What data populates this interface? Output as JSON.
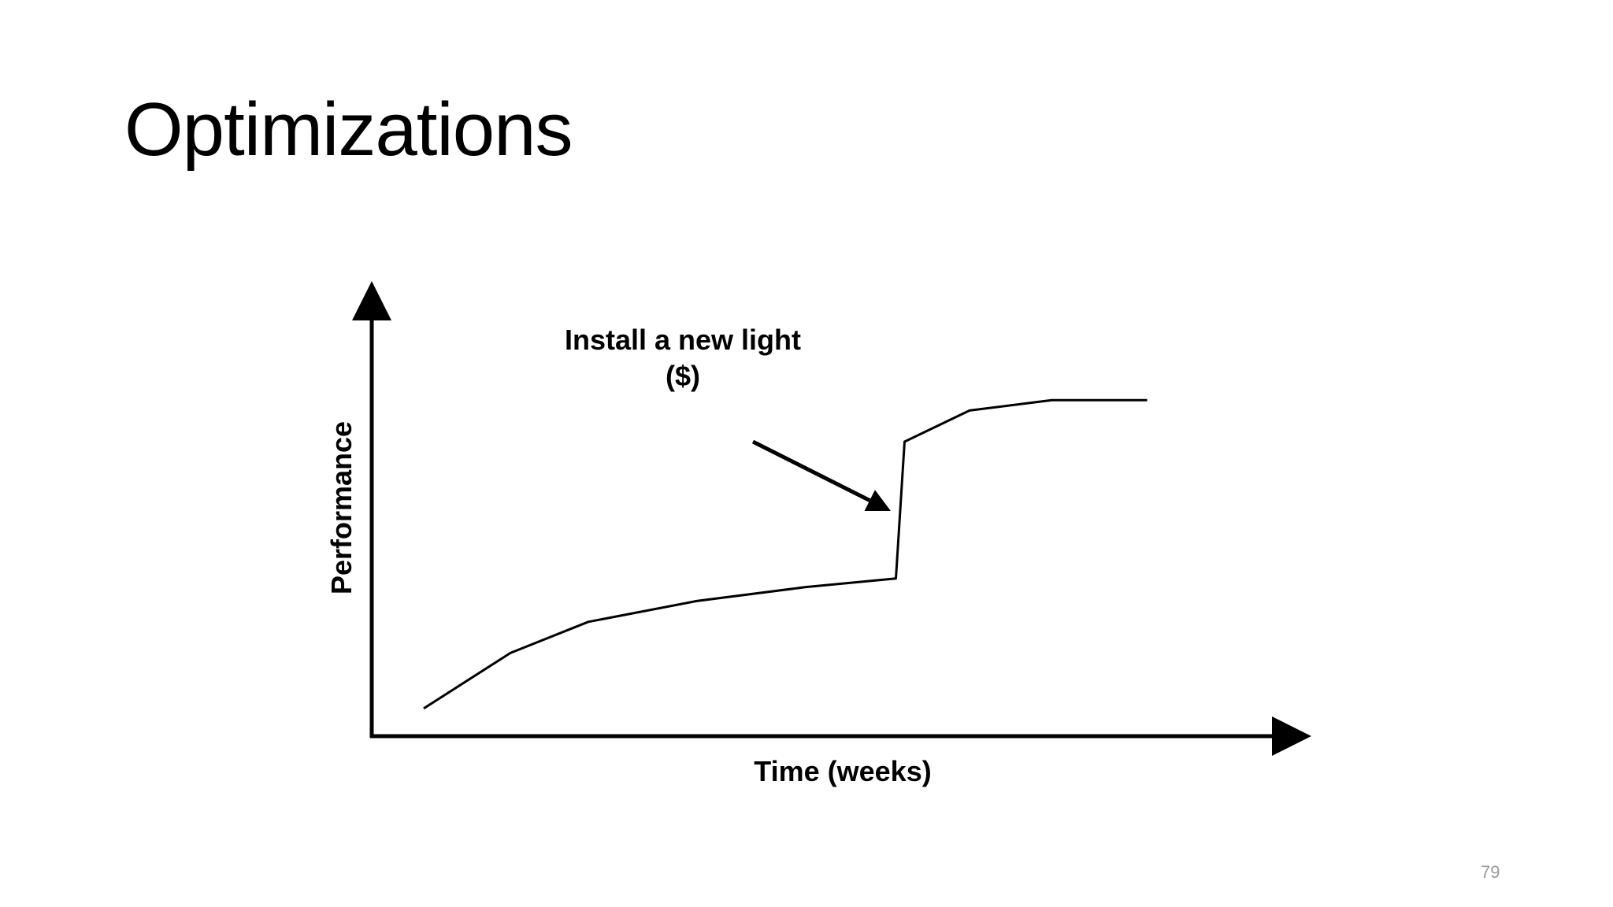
{
  "slide": {
    "title": "Optimizations",
    "page_number": "79"
  },
  "chart_data": {
    "type": "line",
    "title": "",
    "xlabel": "Time (weeks)",
    "ylabel": "Performance",
    "grid": false,
    "legend": "none",
    "axis_ticks": false,
    "xlim": [
      0,
      12
    ],
    "ylim": [
      0,
      10
    ],
    "series": [
      {
        "color": "#000000",
        "x": [
          0.6,
          1.6,
          2.5,
          3.75,
          5.0,
          6.05,
          6.15,
          6.9,
          7.85,
          8.95
        ],
        "y": [
          0.8,
          2.4,
          3.3,
          3.9,
          4.3,
          4.55,
          8.5,
          9.4,
          9.7,
          9.7
        ]
      }
    ],
    "annotations": [
      {
        "text_lines": [
          "Install a new light",
          "($)"
        ],
        "arrow_from": [
          4.4,
          8.5
        ],
        "arrow_to": [
          5.95,
          6.55
        ]
      }
    ]
  }
}
